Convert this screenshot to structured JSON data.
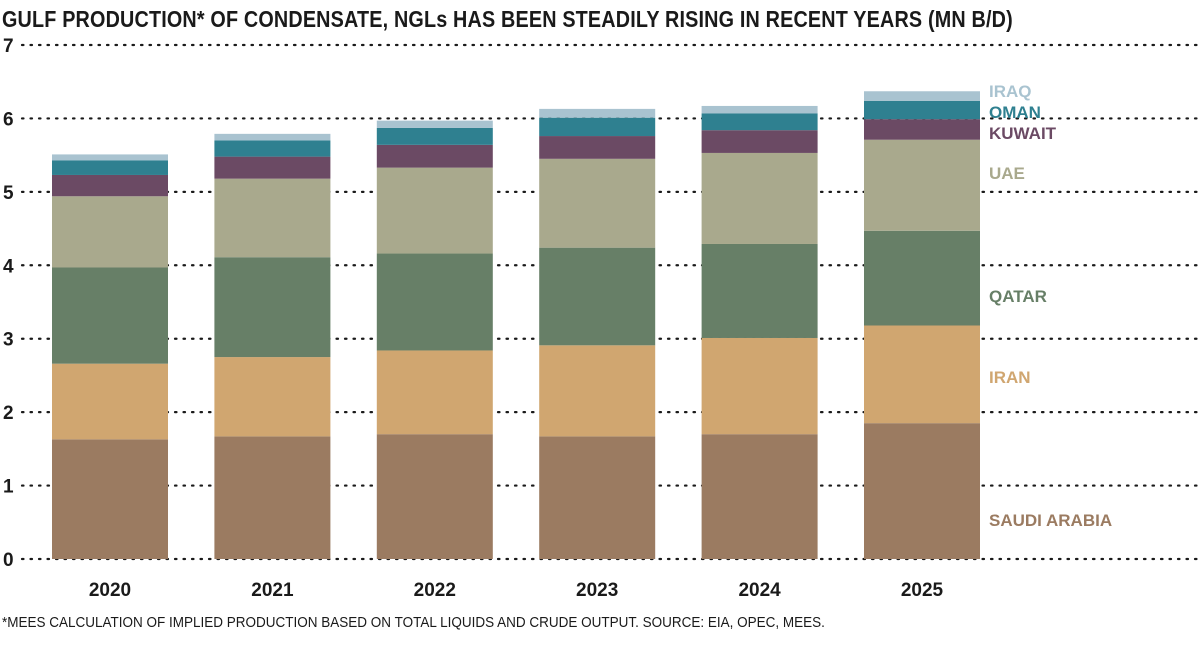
{
  "title": "GULF PRODUCTION* OF CONDENSATE, NGLs HAS BEEN STEADILY RISING IN RECENT YEARS (MN B/D)",
  "footnote": "*MEES CALCULATION OF IMPLIED PRODUCTION BASED ON TOTAL LIQUIDS AND CRUDE OUTPUT. SOURCE: EIA, OPEC, MEES.",
  "chart_data": {
    "type": "bar",
    "stacked": true,
    "title": "GULF PRODUCTION* OF CONDENSATE, NGLs HAS BEEN STEADILY RISING IN RECENT YEARS (MN B/D)",
    "xlabel": "",
    "ylabel": "",
    "ylim": [
      0,
      7
    ],
    "yticks": [
      "0",
      "1",
      "2",
      "3",
      "4",
      "5",
      "6",
      "7"
    ],
    "grid": "dotted horizontal",
    "legend": "right, inline labels",
    "categories": [
      "2020",
      "2021",
      "2022",
      "2023",
      "2024",
      "2025"
    ],
    "series": [
      {
        "name": "SAUDI ARABIA",
        "color": "#9b7b61",
        "values": [
          1.63,
          1.67,
          1.7,
          1.67,
          1.7,
          1.85
        ]
      },
      {
        "name": "IRAN",
        "color": "#d0a670",
        "values": [
          1.03,
          1.08,
          1.14,
          1.24,
          1.31,
          1.33
        ]
      },
      {
        "name": "QATAR",
        "color": "#677f67",
        "values": [
          1.31,
          1.36,
          1.32,
          1.33,
          1.28,
          1.29
        ]
      },
      {
        "name": "UAE",
        "color": "#a9a98d",
        "values": [
          0.97,
          1.07,
          1.17,
          1.21,
          1.24,
          1.24
        ]
      },
      {
        "name": "KUWAIT",
        "color": "#6b4a64",
        "values": [
          0.29,
          0.3,
          0.31,
          0.31,
          0.31,
          0.28
        ]
      },
      {
        "name": "OMAN",
        "color": "#2f8090",
        "values": [
          0.2,
          0.22,
          0.23,
          0.25,
          0.23,
          0.25
        ]
      },
      {
        "name": "IRAQ",
        "color": "#a9c3d0",
        "values": [
          0.08,
          0.09,
          0.1,
          0.12,
          0.1,
          0.13
        ]
      }
    ]
  }
}
